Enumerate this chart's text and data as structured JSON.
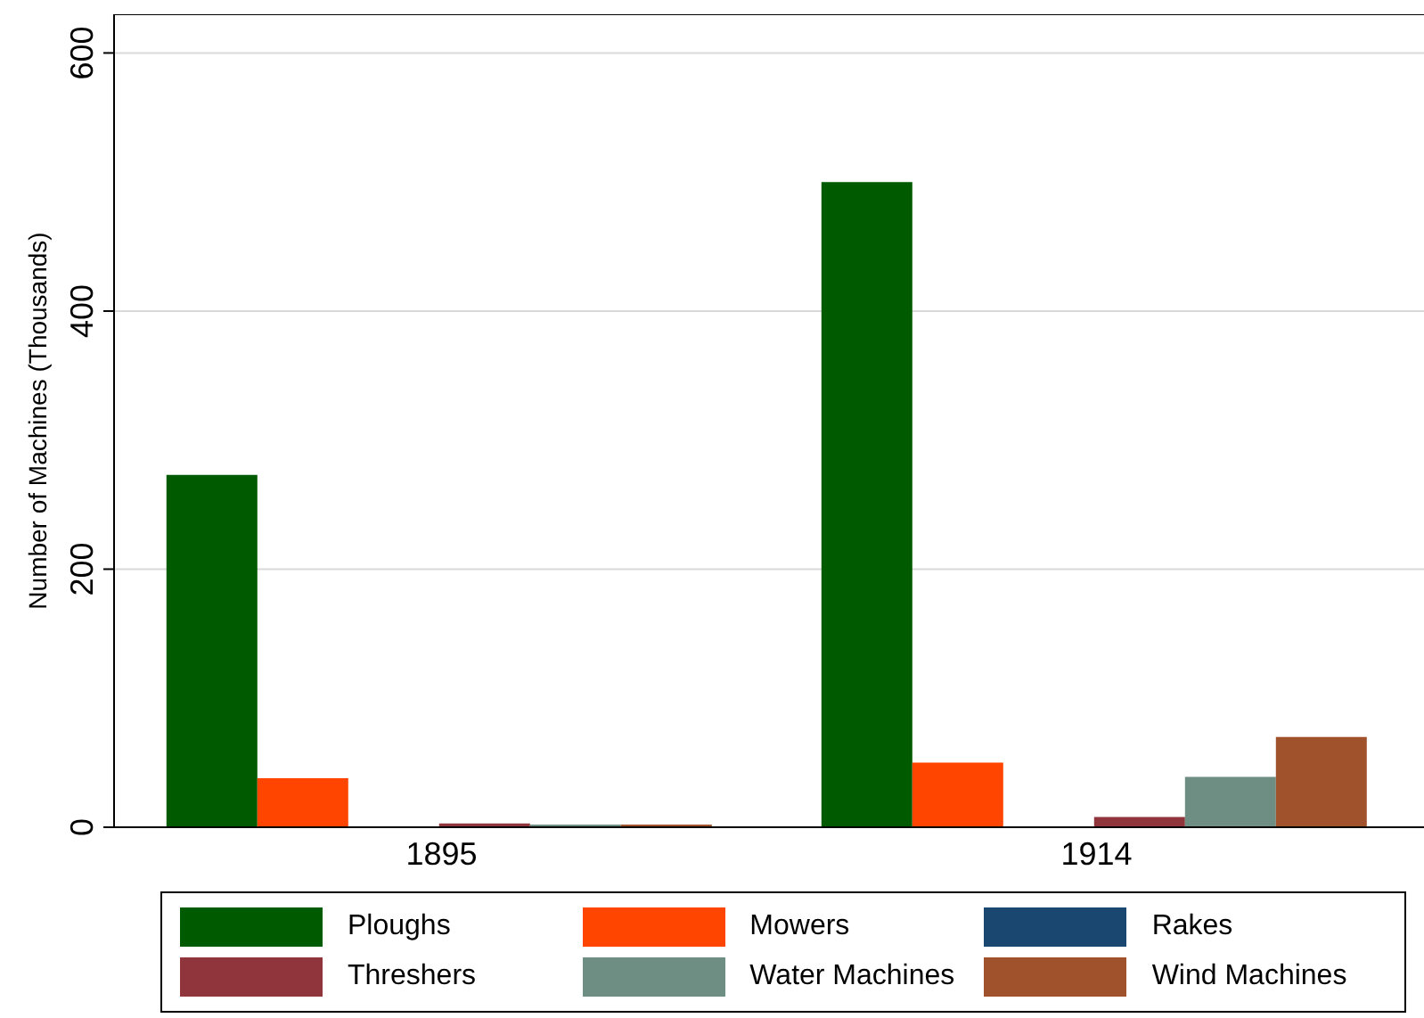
{
  "chart_data": {
    "type": "bar",
    "ylabel": "Number of Machines (Thousands)",
    "categories": [
      "1895",
      "1914"
    ],
    "series": [
      {
        "name": "Ploughs",
        "color": "#005a00",
        "values": [
          273,
          500
        ]
      },
      {
        "name": "Mowers",
        "color": "#ff4500",
        "values": [
          38,
          50
        ]
      },
      {
        "name": "Rakes",
        "color": "#1a476f",
        "values": [
          0,
          0
        ]
      },
      {
        "name": "Threshers",
        "color": "#90353b",
        "values": [
          3,
          8
        ]
      },
      {
        "name": "Water Machines",
        "color": "#6e8e84",
        "values": [
          2,
          39
        ]
      },
      {
        "name": "Wind Machines",
        "color": "#a0522d",
        "values": [
          2,
          70
        ]
      }
    ],
    "ylim": [
      0,
      630
    ],
    "yticks": [
      0,
      200,
      400,
      600
    ],
    "grid": "y",
    "legend": "bottom"
  }
}
